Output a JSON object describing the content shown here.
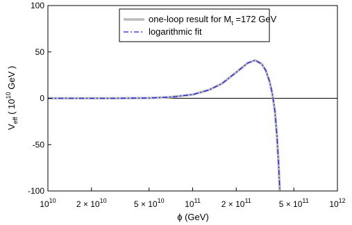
{
  "chart_data": {
    "type": "line",
    "xscale": "log",
    "xlim": [
      10000000000.0,
      1000000000000.0
    ],
    "ylim": [
      -100,
      100
    ],
    "xlabel": "ϕ (GeV)",
    "ylabel": {
      "base": "V",
      "sub": "eff",
      "open": " ( 10",
      "sup": "10",
      "close": " GeV )"
    },
    "x_ticks": [
      {
        "value": 10000000000.0,
        "base": "10",
        "sup": "10"
      },
      {
        "value": 20000000000.0,
        "base": "2 × 10",
        "sup": "10"
      },
      {
        "value": 50000000000.0,
        "base": "5 × 10",
        "sup": "10"
      },
      {
        "value": 100000000000.0,
        "base": "10",
        "sup": "11"
      },
      {
        "value": 200000000000.0,
        "base": "2 × 10",
        "sup": "11"
      },
      {
        "value": 500000000000.0,
        "base": "5 × 10",
        "sup": "11"
      },
      {
        "value": 1000000000000.0,
        "base": "10",
        "sup": "12"
      }
    ],
    "y_ticks": [
      {
        "value": 100,
        "label": "100"
      },
      {
        "value": 50,
        "label": "50"
      },
      {
        "value": 0,
        "label": "0"
      },
      {
        "value": -50,
        "label": "-50"
      },
      {
        "value": -100,
        "label": "-100"
      }
    ],
    "legend_position": "top-center",
    "series": [
      {
        "name": {
          "pre": "one-loop result for M",
          "sub": "t",
          "post": " =172 GeV"
        },
        "style": "solid",
        "color": "#bbbbbb",
        "x": [
          10000000000.0,
          30000000000.0,
          50000000000.0,
          70000000000.0,
          100000000000.0,
          130000000000.0,
          160000000000.0,
          200000000000.0,
          240000000000.0,
          270000000000.0,
          300000000000.0,
          320000000000.0,
          340000000000.0,
          355000000000.0,
          370000000000.0,
          382000000000.0,
          392000000000.0,
          400000000000.0
        ],
        "y": [
          0,
          0,
          0.3,
          1.2,
          4,
          9,
          16,
          28,
          38,
          41,
          37,
          30,
          18,
          5,
          -14,
          -40,
          -70,
          -100
        ]
      },
      {
        "name": "logarithmic fit",
        "style": "dashdot",
        "color": "#1a1aee",
        "x": [
          10000000000.0,
          30000000000.0,
          50000000000.0,
          70000000000.0,
          100000000000.0,
          130000000000.0,
          160000000000.0,
          200000000000.0,
          240000000000.0,
          270000000000.0,
          300000000000.0,
          320000000000.0,
          340000000000.0,
          355000000000.0,
          370000000000.0,
          382000000000.0,
          392000000000.0,
          400000000000.0
        ],
        "y": [
          0,
          0,
          0.3,
          1.2,
          4,
          9,
          16,
          28,
          38,
          41,
          37,
          30,
          18,
          5,
          -14,
          -40,
          -70,
          -100
        ]
      }
    ]
  }
}
